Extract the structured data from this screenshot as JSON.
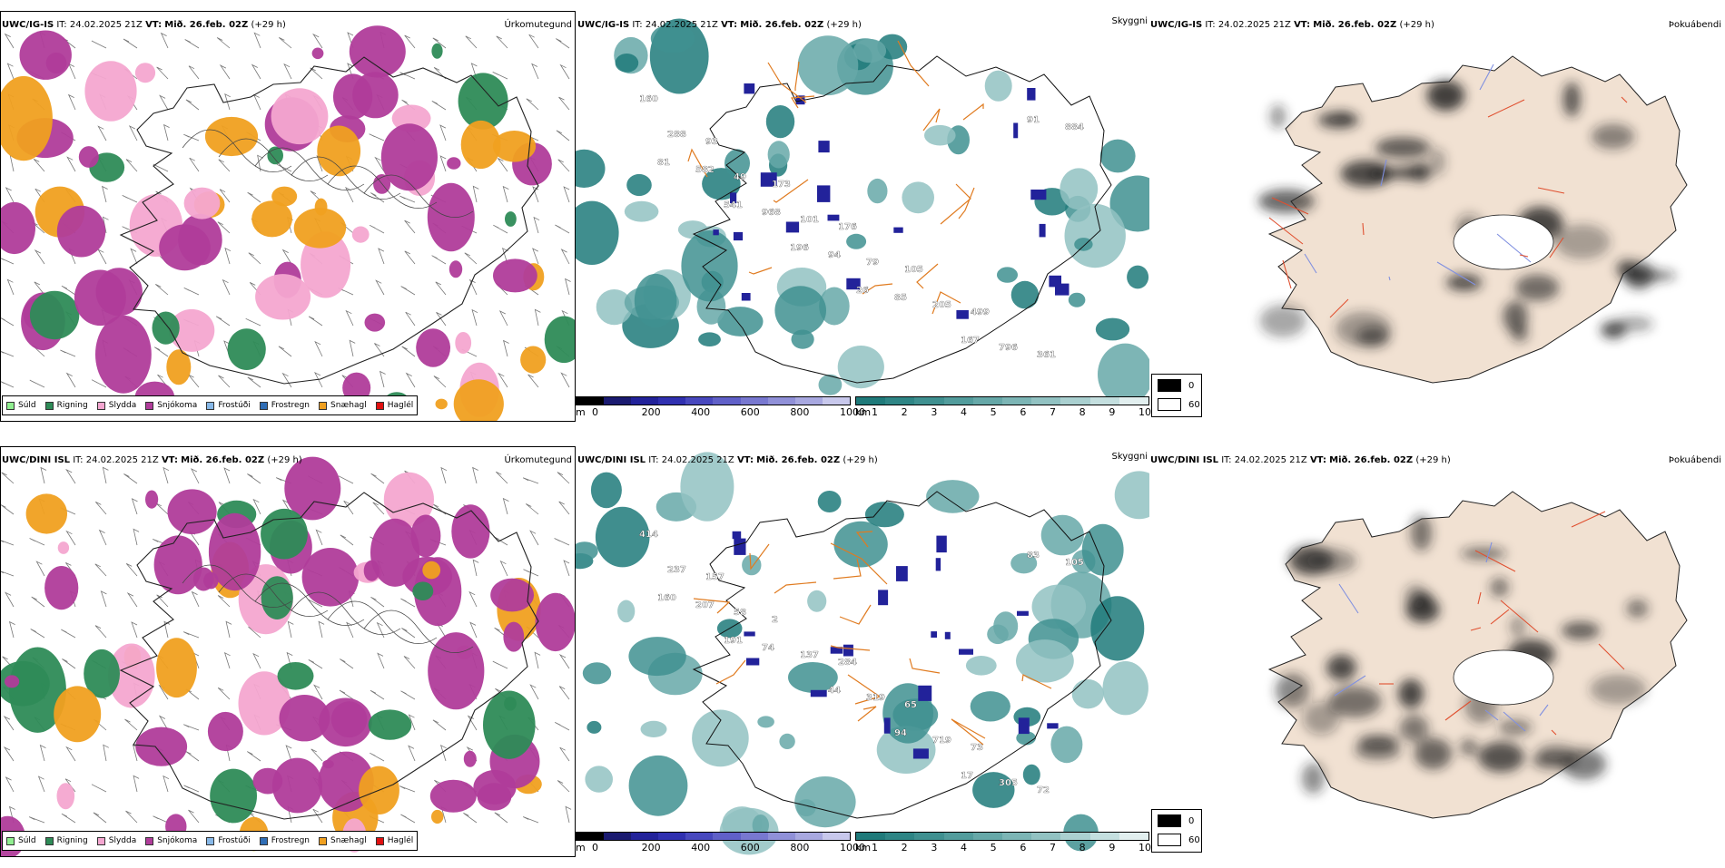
{
  "rows": [
    {
      "model": "UWC/IG-IS",
      "it_label": "IT:",
      "it_value": "24.02.2025 21Z",
      "vt_label": "VT:",
      "vt_value": "Mið. 26.feb. 02Z",
      "lead": "(+29 h)"
    },
    {
      "model": "UWC/DINI ISL",
      "it_label": "IT:",
      "it_value": "24.02.2025 21Z",
      "vt_label": "VT:",
      "vt_value": "Mið. 26.feb. 02Z",
      "lead": "(+29 h)"
    }
  ],
  "panel_titles": {
    "precip": "Úrkomutegund",
    "visibility": "Skyggni",
    "fog": "Þokuábendi"
  },
  "precip_legend": [
    {
      "label": "Súld",
      "color": "#90ee90"
    },
    {
      "label": "Rigning",
      "color": "#2e8b57"
    },
    {
      "label": "Slydda",
      "color": "#f4a6d0"
    },
    {
      "label": "Snjókoma",
      "color": "#b03c9a"
    },
    {
      "label": "Frostúði",
      "color": "#87b8e8"
    },
    {
      "label": "Frostregn",
      "color": "#2f6db5"
    },
    {
      "label": "Snæhagl",
      "color": "#f0a020"
    },
    {
      "label": "Haglél",
      "color": "#e01010"
    }
  ],
  "vis_scale_m": {
    "unit": "m",
    "ticks": [
      "0",
      "200",
      "400",
      "600",
      "800",
      "1000"
    ],
    "colors": [
      "#000000",
      "#1a1a70",
      "#22229a",
      "#3030b0",
      "#4848be",
      "#6060c8",
      "#7878d0",
      "#9090d8",
      "#a8a8e0",
      "#c8c8ec"
    ]
  },
  "vis_scale_km": {
    "unit": "km",
    "ticks": [
      "1",
      "2",
      "3",
      "4",
      "5",
      "6",
      "7",
      "8",
      "9",
      "10"
    ],
    "colors": [
      "#1f7a7a",
      "#2e8585",
      "#3f9090",
      "#529c9c",
      "#66a8a8",
      "#7cb5b5",
      "#92c2c2",
      "#aad0d0",
      "#c4dfdf",
      "#e2efef"
    ]
  },
  "fog_key": [
    {
      "label": "0",
      "color": "#000000"
    },
    {
      "label": "60",
      "color": "#ffffff"
    }
  ],
  "vis_labels": {
    "row0": [
      "160",
      "93",
      "173",
      "176",
      "105",
      "499",
      "361",
      "288",
      "49",
      "101",
      "79",
      "205",
      "796",
      "884",
      "582",
      "968",
      "94",
      "85",
      "167",
      "91",
      "81",
      "541",
      "196",
      "26"
    ],
    "row1": [
      "414",
      "157",
      "2",
      "284",
      "65",
      "73",
      "72",
      "237",
      "58",
      "137",
      "319",
      "719",
      "305",
      "105",
      "207",
      "74",
      "44",
      "94",
      "17",
      "83",
      "160",
      "191"
    ]
  }
}
